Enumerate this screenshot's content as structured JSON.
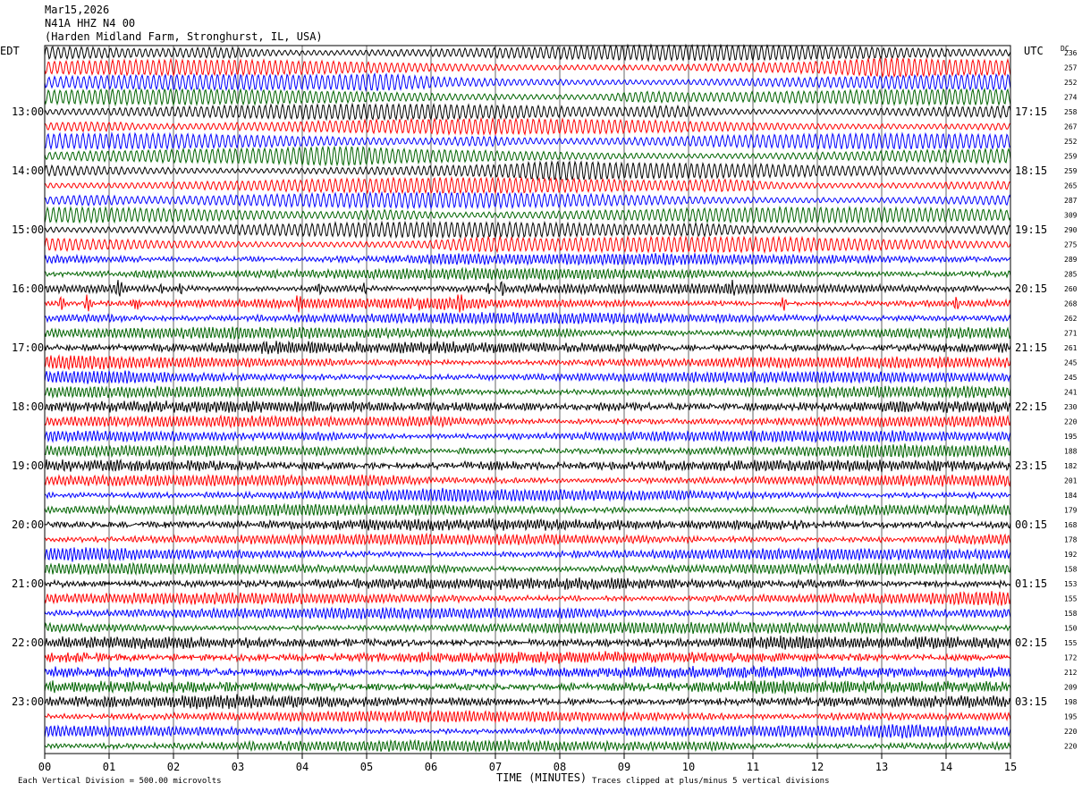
{
  "header": {
    "date": "Mar15,2026",
    "station": "N41A HHZ N4 00",
    "location": "(Harden Midland Farm, Stronghurst, IL, USA)"
  },
  "left_zone_label": "EDT",
  "right_zone_label": "UTC",
  "dc_header": "DC",
  "footer": {
    "scale_note": "Each Vertical Division =  500.00 microvolts",
    "xlabel": "TIME (MINUTES)",
    "clip_note": "Traces clipped at plus/minus 5 vertical divisions"
  },
  "colors": {
    "trace_cycle": [
      "#000000",
      "#ff0000",
      "#0000ff",
      "#006400"
    ],
    "grid": "#000000"
  },
  "chart_data": {
    "type": "line",
    "title": "",
    "xlabel": "TIME (MINUTES)",
    "xlim": [
      0,
      15
    ],
    "x_tick_labels": [
      "00",
      "01",
      "02",
      "03",
      "04",
      "05",
      "06",
      "07",
      "08",
      "09",
      "10",
      "11",
      "12",
      "13",
      "14",
      "15"
    ],
    "rows_per_hour": 4,
    "edt_hour_labels": [
      "13:00",
      "14:00",
      "15:00",
      "16:00",
      "17:00",
      "18:00",
      "19:00",
      "20:00",
      "21:00",
      "22:00",
      "23:00"
    ],
    "utc_hour_labels": [
      "17:15",
      "18:15",
      "19:15",
      "20:15",
      "21:15",
      "22:15",
      "23:15",
      "00:15",
      "01:15",
      "02:15",
      "03:15"
    ],
    "hour_label_first_row": 4,
    "dc_offsets": [
      236,
      257,
      252,
      274,
      258,
      267,
      252,
      259,
      259,
      265,
      287,
      309,
      290,
      275,
      289,
      285,
      260,
      268,
      262,
      271,
      261,
      245,
      245,
      241,
      230,
      220,
      195,
      188,
      182,
      201,
      184,
      179,
      168,
      178,
      192,
      158,
      153,
      155,
      158,
      150,
      155,
      172,
      212,
      209,
      198,
      195,
      220,
      220
    ],
    "trace_character": [
      "long-period",
      "long-period",
      "long-period",
      "long-period",
      "long-period",
      "long-period",
      "long-period",
      "long-period",
      "long-period",
      "long-period",
      "long-period",
      "long-period",
      "long-period",
      "long-period",
      "mixed",
      "mixed",
      "spiky",
      "spiky",
      "mixed",
      "mixed",
      "noisy",
      "mixed",
      "mixed",
      "mixed",
      "noisy",
      "mixed",
      "mixed",
      "mixed",
      "noisy",
      "mixed",
      "mixed",
      "mixed",
      "noisy",
      "mixed",
      "mixed",
      "mixed",
      "noisy",
      "mixed",
      "mixed",
      "mixed",
      "noisy",
      "noisy",
      "noisy",
      "noisy",
      "noisy",
      "mixed",
      "mixed",
      "mixed"
    ]
  }
}
